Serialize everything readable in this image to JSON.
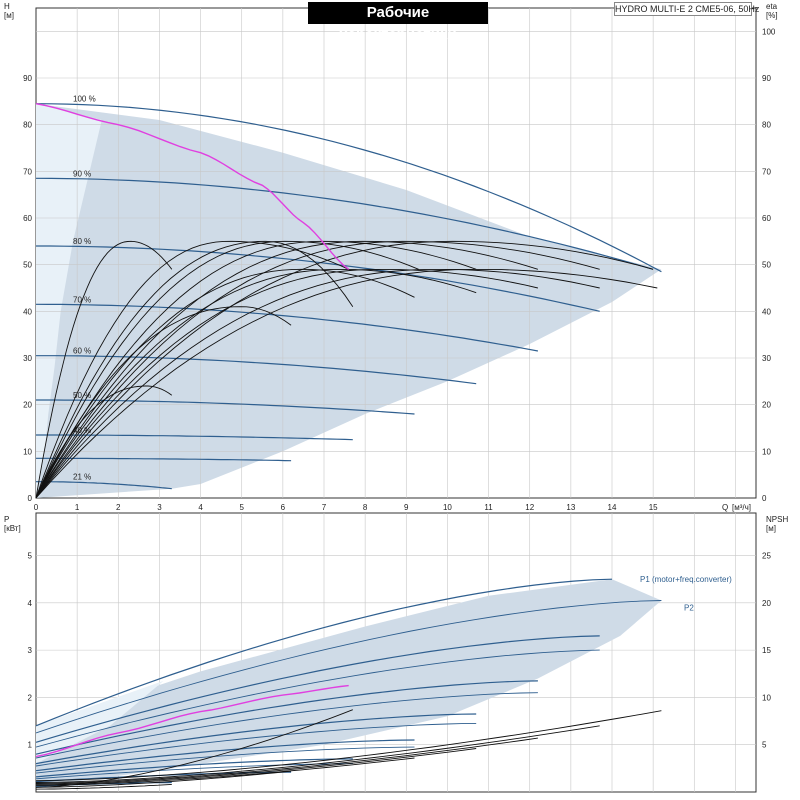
{
  "header": {
    "title": "Рабочие характеристики",
    "model": "HYDRO MULTI-E 2 CME5-06, 50Hz"
  },
  "colors": {
    "envelope": "#cfdbe7",
    "envelope_light": "#e8f1f8",
    "speed_curve": "#2f5f8f",
    "eff_curve": "#111111",
    "system_curve": "#e040e0",
    "grid": "#c8c8c8"
  },
  "chart_data": [
    {
      "type": "line",
      "name": "head-chart",
      "ylabel": "H",
      "yunit": "[м]",
      "y2label": "eta",
      "y2unit": "[%]",
      "xlabel": "Q",
      "xunit": "[м³/ч]",
      "xlim": [
        0,
        17.5
      ],
      "ylim": [
        0,
        105
      ],
      "y2lim": [
        0,
        105
      ],
      "xticks": [
        "0",
        "1",
        "2",
        "3",
        "4",
        "5",
        "6",
        "7",
        "8",
        "9",
        "10",
        "11",
        "12",
        "13",
        "14",
        "15"
      ],
      "yticks": [
        "0",
        "10",
        "20",
        "30",
        "40",
        "50",
        "60",
        "70",
        "80",
        "90"
      ],
      "y2ticks": [
        "0",
        "10",
        "20",
        "30",
        "40",
        "50",
        "60",
        "70",
        "80",
        "90",
        "100"
      ],
      "grid": true,
      "speed_curves": [
        {
          "label": "100 %",
          "qmax": 15.2,
          "h0": 84.5,
          "hend": 48.5
        },
        {
          "label": "90 %",
          "qmax": 15.0,
          "h0": 68.5,
          "hend": 49.0
        },
        {
          "label": "80 %",
          "qmax": 13.7,
          "h0": 54.0,
          "hend": 40.0
        },
        {
          "label": "70 %",
          "qmax": 12.2,
          "h0": 41.5,
          "hend": 31.5
        },
        {
          "label": "60 %",
          "qmax": 10.7,
          "h0": 30.5,
          "hend": 24.5
        },
        {
          "label": "50 %",
          "qmax": 9.2,
          "h0": 21.0,
          "hend": 18.0
        },
        {
          "label": "40 %",
          "qmax": 7.7,
          "h0": 13.5,
          "hend": 12.5
        },
        {
          "label": "",
          "qmax": 6.2,
          "h0": 8.5,
          "hend": 8.0
        },
        {
          "label": "21 %",
          "qmax": 3.3,
          "h0": 3.5,
          "hend": 2.0
        }
      ],
      "efficiency_curves": [
        {
          "qpeak": 2.3,
          "epeak": 55,
          "qend": 3.3,
          "eend": 49
        },
        {
          "qpeak": 2.7,
          "epeak": 24,
          "qend": 3.3,
          "eend": 22
        },
        {
          "qpeak": 4.7,
          "epeak": 55,
          "qend": 7.6,
          "eend": 49
        },
        {
          "qpeak": 5.0,
          "epeak": 41,
          "qend": 6.2,
          "eend": 37
        },
        {
          "qpeak": 5.6,
          "epeak": 55,
          "qend": 7.7,
          "eend": 41
        },
        {
          "qpeak": 6.1,
          "epeak": 55,
          "qend": 9.3,
          "eend": 49
        },
        {
          "qpeak": 6.5,
          "epeak": 49,
          "qend": 9.2,
          "eend": 43
        },
        {
          "qpeak": 7.0,
          "epeak": 55,
          "qend": 10.7,
          "eend": 49
        },
        {
          "qpeak": 7.4,
          "epeak": 49,
          "qend": 10.7,
          "eend": 44
        },
        {
          "qpeak": 8.0,
          "epeak": 55,
          "qend": 12.2,
          "eend": 49
        },
        {
          "qpeak": 8.4,
          "epeak": 49,
          "qend": 12.2,
          "eend": 45
        },
        {
          "qpeak": 9.0,
          "epeak": 55,
          "qend": 13.7,
          "eend": 49
        },
        {
          "qpeak": 9.8,
          "epeak": 49,
          "qend": 13.7,
          "eend": 45
        },
        {
          "qpeak": 10.2,
          "epeak": 55,
          "qend": 15.0,
          "eend": 49
        },
        {
          "qpeak": 10.8,
          "epeak": 49,
          "qend": 15.1,
          "eend": 45
        }
      ],
      "system_curve": {
        "x": [
          0,
          2,
          4,
          5.5,
          6.5,
          7.6
        ],
        "y": [
          84.5,
          80,
          74,
          67,
          59,
          49
        ]
      },
      "envelope": {
        "top": {
          "x": [
            0,
            3,
            6,
            9,
            12,
            15.2
          ],
          "y": [
            84.5,
            81,
            74,
            66,
            56,
            49
          ]
        },
        "bottom": {
          "x": [
            15.2,
            14,
            12,
            10,
            8,
            6,
            4,
            3.3
          ],
          "y": [
            49,
            42,
            33,
            25,
            18,
            10,
            3,
            2
          ]
        },
        "light_left": {
          "x": [
            0,
            1.6,
            0.9,
            0.6,
            0.45,
            0.3,
            0.2,
            0
          ],
          "y": [
            84.5,
            81,
            55,
            40,
            28,
            18,
            9,
            0
          ]
        }
      }
    },
    {
      "type": "line",
      "name": "power-npsh-chart",
      "ylabel": "P",
      "yunit": "[кВт]",
      "y2label": "NPSH",
      "y2unit": "[м]",
      "xlim": [
        0,
        17.5
      ],
      "ylim": [
        0,
        5.9
      ],
      "y2lim": [
        0,
        29.5
      ],
      "yticks": [
        "1",
        "2",
        "3",
        "4",
        "5"
      ],
      "y2ticks": [
        "5",
        "10",
        "15",
        "20",
        "25"
      ],
      "grid": true,
      "p1_label": "P1 (motor+freq.converter)",
      "p2_label": "P2",
      "power_curves": [
        {
          "qmax": 14.0,
          "p0": 1.4,
          "pend": 4.5,
          "kind": "p1"
        },
        {
          "qmax": 15.2,
          "p0": 1.25,
          "pend": 4.05,
          "kind": "p2"
        },
        {
          "qmax": 13.7,
          "p0": 1.05,
          "pend": 3.3,
          "kind": "p1"
        },
        {
          "qmax": 13.7,
          "p0": 0.95,
          "pend": 3.0,
          "kind": "p2"
        },
        {
          "qmax": 12.2,
          "p0": 0.8,
          "pend": 2.35,
          "kind": "p1"
        },
        {
          "qmax": 12.2,
          "p0": 0.72,
          "pend": 2.1,
          "kind": "p2"
        },
        {
          "qmax": 10.7,
          "p0": 0.6,
          "pend": 1.65,
          "kind": "p1"
        },
        {
          "qmax": 10.7,
          "p0": 0.55,
          "pend": 1.45,
          "kind": "p2"
        },
        {
          "qmax": 9.2,
          "p0": 0.45,
          "pend": 1.1,
          "kind": "p1"
        },
        {
          "qmax": 9.2,
          "p0": 0.4,
          "pend": 0.95,
          "kind": "p2"
        },
        {
          "qmax": 7.7,
          "p0": 0.32,
          "pend": 0.7,
          "kind": "p1"
        },
        {
          "qmax": 7.7,
          "p0": 0.28,
          "pend": 0.6,
          "kind": "p2"
        },
        {
          "qmax": 6.2,
          "p0": 0.22,
          "pend": 0.42,
          "kind": "p1"
        },
        {
          "qmax": 3.3,
          "p0": 0.12,
          "pend": 0.2,
          "kind": "p1"
        }
      ],
      "system_power": {
        "x": [
          0,
          2,
          4,
          6,
          7.6
        ],
        "y": [
          0.75,
          1.25,
          1.7,
          2.05,
          2.25
        ]
      },
      "npsh_curves": [
        {
          "qmax": 15.2,
          "n1": 8.6,
          "start": 1.2
        },
        {
          "qmax": 13.7,
          "n1": 7.0,
          "start": 1.0
        },
        {
          "qmax": 12.2,
          "n1": 5.7,
          "start": 0.9
        },
        {
          "qmax": 10.7,
          "n1": 4.6,
          "start": 0.8
        },
        {
          "qmax": 9.2,
          "n1": 3.6,
          "start": 0.7
        },
        {
          "qmax": 7.7,
          "n1": 8.7,
          "start": 0.5
        },
        {
          "qmax": 6.2,
          "n1": 2.2,
          "start": 0.5
        },
        {
          "qmax": 3.3,
          "n1": 0.8,
          "start": 0.3
        }
      ]
    }
  ]
}
